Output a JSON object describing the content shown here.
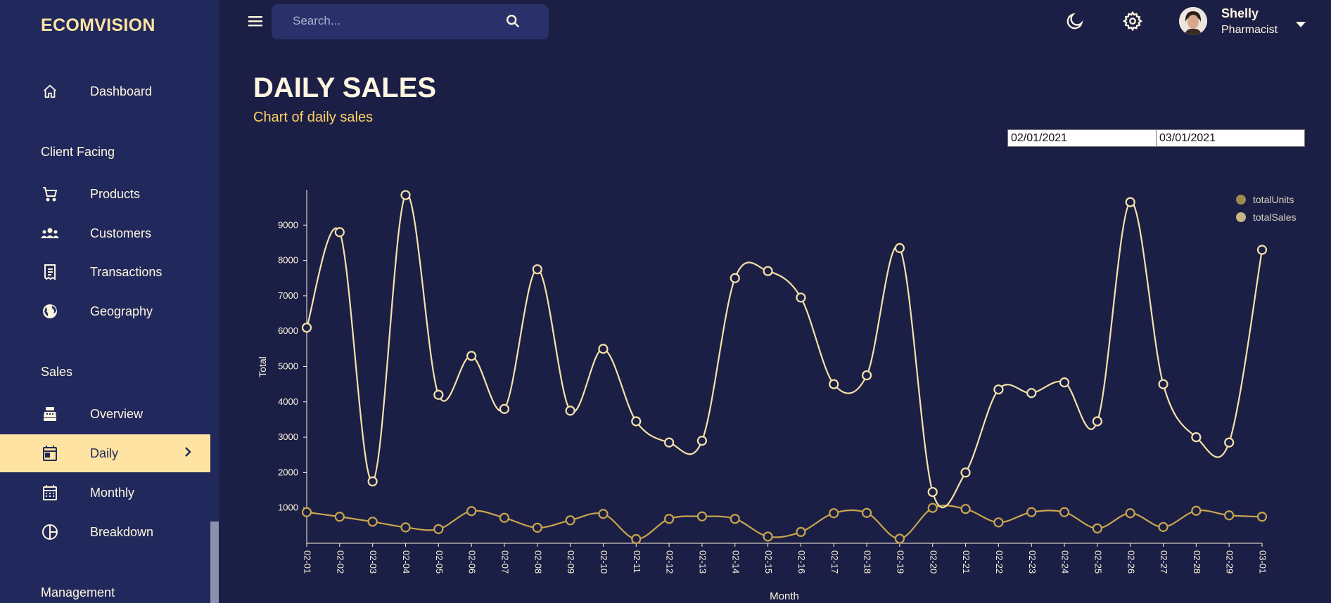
{
  "app": {
    "brand": "ECOMVISION"
  },
  "sidebar": {
    "items": [
      {
        "label": "Dashboard",
        "icon": "home-icon"
      },
      {
        "section": "Client Facing"
      },
      {
        "label": "Products",
        "icon": "cart-icon"
      },
      {
        "label": "Customers",
        "icon": "groups-icon"
      },
      {
        "label": "Transactions",
        "icon": "receipt-icon"
      },
      {
        "label": "Geography",
        "icon": "globe-icon"
      },
      {
        "section": "Sales"
      },
      {
        "label": "Overview",
        "icon": "point-of-sale-icon"
      },
      {
        "label": "Daily",
        "icon": "calendar-today-icon",
        "active": true
      },
      {
        "label": "Monthly",
        "icon": "calendar-month-icon"
      },
      {
        "label": "Breakdown",
        "icon": "pie-chart-icon"
      },
      {
        "section": "Management"
      }
    ]
  },
  "topbar": {
    "search_placeholder": "Search...",
    "user": {
      "name": "Shelly",
      "role": "Pharmacist"
    }
  },
  "header": {
    "title": "DAILY SALES",
    "subtitle": "Chart of daily sales"
  },
  "date_range": {
    "start": "02/01/2021",
    "end": "03/01/2021"
  },
  "colors": {
    "accent": "#ffe3a3",
    "sales_line": "#f6e2a9",
    "units_line": "#c9a54e",
    "background": "#1b1f45",
    "sidebar": "#21295c"
  },
  "chart_data": {
    "type": "line",
    "xlabel": "Month",
    "ylabel": "Total",
    "ylim": [
      0,
      10000
    ],
    "yticks": [
      1000,
      2000,
      3000,
      4000,
      5000,
      6000,
      7000,
      8000,
      9000
    ],
    "legend_position": "top-right",
    "x": [
      "02-01",
      "02-02",
      "02-03",
      "02-04",
      "02-05",
      "02-06",
      "02-07",
      "02-08",
      "02-09",
      "02-10",
      "02-11",
      "02-12",
      "02-13",
      "02-14",
      "02-15",
      "02-16",
      "02-17",
      "02-18",
      "02-19",
      "02-20",
      "02-21",
      "02-22",
      "02-23",
      "02-24",
      "02-25",
      "02-26",
      "02-27",
      "02-28",
      "02-29",
      "03-01"
    ],
    "series": [
      {
        "name": "totalUnits",
        "color": "#c9a54e",
        "values": [
          880,
          750,
          610,
          450,
          400,
          910,
          720,
          440,
          650,
          830,
          120,
          690,
          760,
          690,
          190,
          320,
          850,
          860,
          130,
          1000,
          970,
          590,
          880,
          880,
          420,
          850,
          460,
          920,
          790,
          750
        ]
      },
      {
        "name": "totalSales",
        "color": "#f6e2a9",
        "values": [
          6100,
          8800,
          1750,
          9850,
          4200,
          5300,
          3800,
          7750,
          3750,
          5500,
          3450,
          2850,
          2900,
          7500,
          7700,
          6950,
          4500,
          4750,
          8350,
          1450,
          2000,
          4350,
          4250,
          4550,
          3450,
          9650,
          4500,
          3000,
          2850,
          8300
        ]
      }
    ]
  }
}
